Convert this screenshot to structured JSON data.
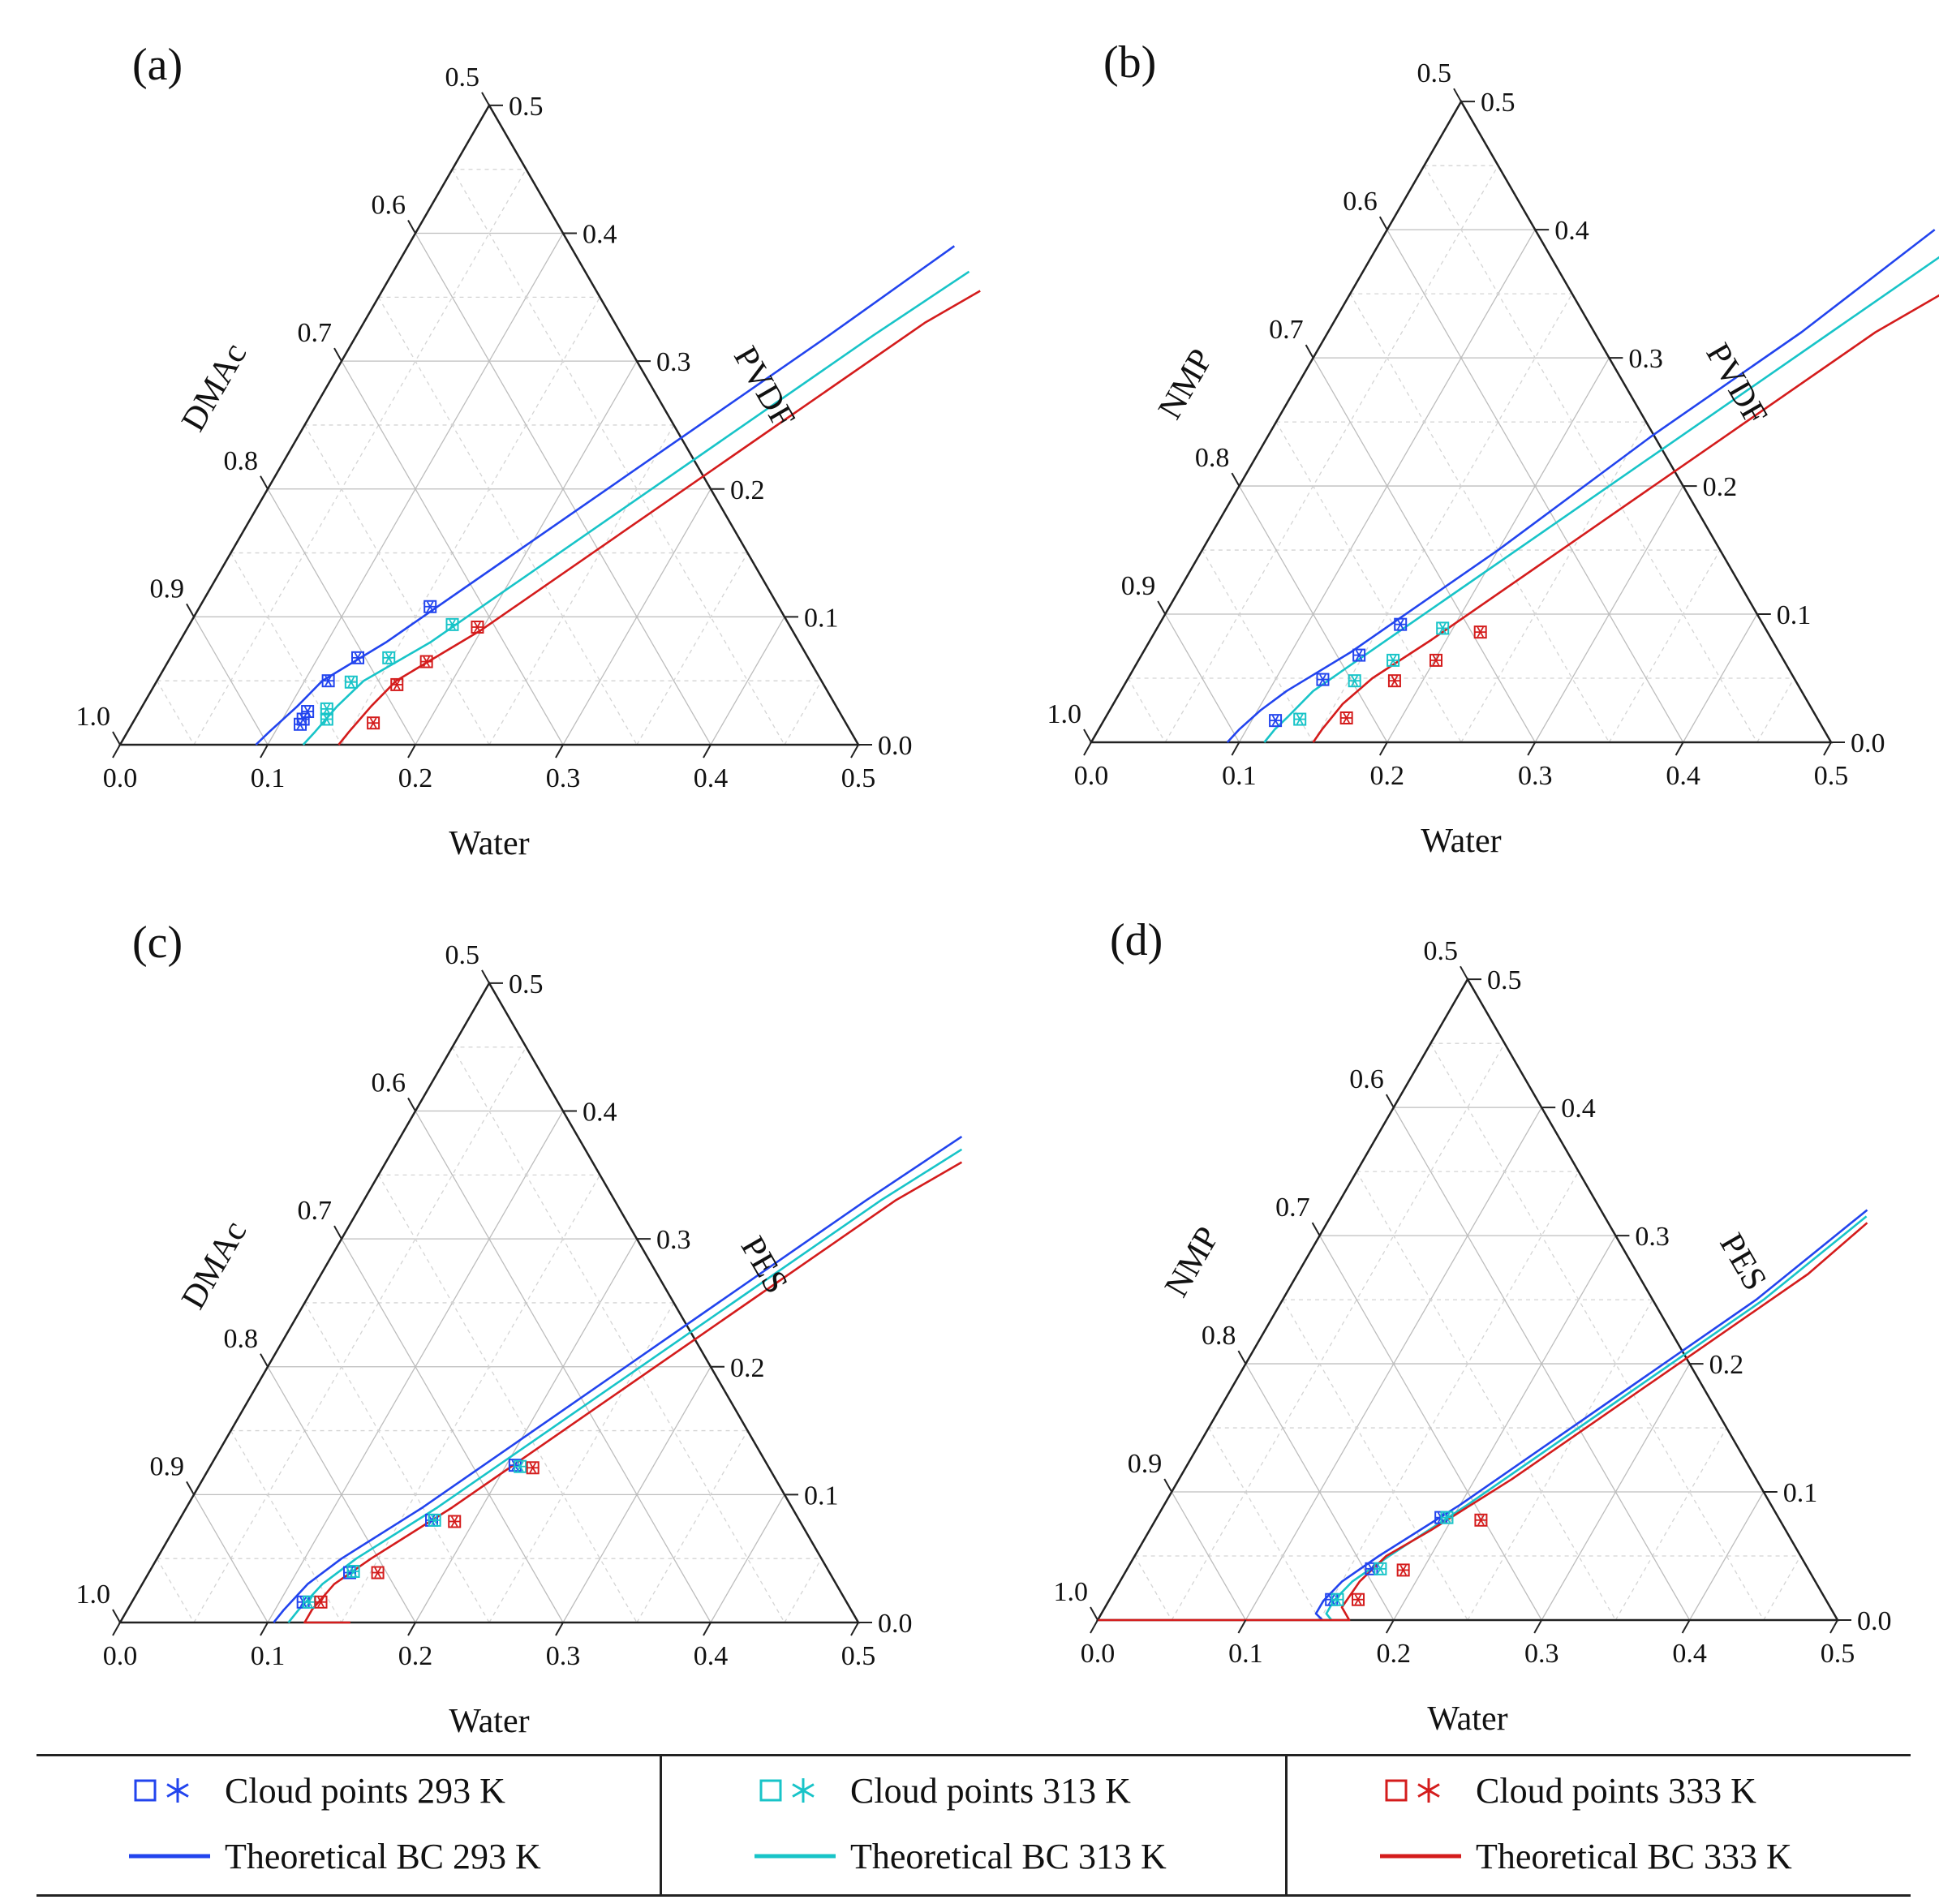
{
  "figure": {
    "panels": [
      {
        "label": "(a)",
        "solvent_label": "DMAc",
        "polymer_label": "PVDF",
        "water_label": "Water",
        "solvent_ticks": [
          "1.0",
          "0.9",
          "0.8",
          "0.7",
          "0.6",
          "0.5"
        ],
        "polymer_ticks": [
          "0.0",
          "0.1",
          "0.2",
          "0.3",
          "0.4",
          "0.5"
        ],
        "water_ticks": [
          "0.0",
          "0.1",
          "0.2",
          "0.3",
          "0.4",
          "0.5"
        ]
      },
      {
        "label": "(b)",
        "solvent_label": "NMP",
        "polymer_label": "PVDF",
        "water_label": "Water",
        "solvent_ticks": [
          "1.0",
          "0.9",
          "0.8",
          "0.7",
          "0.6",
          "0.5"
        ],
        "polymer_ticks": [
          "0.0",
          "0.1",
          "0.2",
          "0.3",
          "0.4",
          "0.5"
        ],
        "water_ticks": [
          "0.0",
          "0.1",
          "0.2",
          "0.3",
          "0.4",
          "0.5"
        ]
      },
      {
        "label": "(c)",
        "solvent_label": "DMAc",
        "polymer_label": "PES",
        "water_label": "Water",
        "solvent_ticks": [
          "1.0",
          "0.9",
          "0.8",
          "0.7",
          "0.6",
          "0.5"
        ],
        "polymer_ticks": [
          "0.0",
          "0.1",
          "0.2",
          "0.3",
          "0.4",
          "0.5"
        ],
        "water_ticks": [
          "0.0",
          "0.1",
          "0.2",
          "0.3",
          "0.4",
          "0.5"
        ]
      },
      {
        "label": "(d)",
        "solvent_label": "NMP",
        "polymer_label": "PES",
        "water_label": "Water",
        "solvent_ticks": [
          "1.0",
          "0.9",
          "0.8",
          "0.7",
          "0.6",
          "0.5"
        ],
        "polymer_ticks": [
          "0.0",
          "0.1",
          "0.2",
          "0.3",
          "0.4",
          "0.5"
        ],
        "water_ticks": [
          "0.0",
          "0.1",
          "0.2",
          "0.3",
          "0.4",
          "0.5"
        ]
      }
    ]
  },
  "legend": {
    "items": [
      {
        "points_label": "Cloud points 293 K",
        "line_label": "Theoretical BC 293 K",
        "color": "#2244ee"
      },
      {
        "points_label": "Cloud points 313 K",
        "line_label": "Theoretical BC 313 K",
        "color": "#18c4c8"
      },
      {
        "points_label": "Cloud points 333 K",
        "line_label": "Theoretical BC 333 K",
        "color": "#d41c1c"
      }
    ]
  },
  "chart_data": [
    {
      "type": "ternary",
      "title": "(a)",
      "axes": {
        "water": "Water",
        "solvent": "DMAc",
        "polymer": "PVDF"
      },
      "ranges": {
        "water": [
          0.0,
          0.5
        ],
        "solvent": [
          0.5,
          1.0
        ],
        "polymer": [
          0.0,
          0.5
        ]
      },
      "grid": true,
      "series": [
        {
          "name": "Theoretical BC 293 K",
          "kind": "line",
          "color": "#2244ee",
          "water": [
            0.092,
            0.096,
            0.105,
            0.112,
            0.14,
            0.2,
            0.26,
            0.32,
            0.37
          ],
          "polymer": [
            0.0,
            0.01,
            0.03,
            0.05,
            0.08,
            0.16,
            0.24,
            0.32,
            0.39
          ]
        },
        {
          "name": "Theoretical BC 313 K",
          "kind": "line",
          "color": "#18c4c8",
          "water": [
            0.124,
            0.127,
            0.132,
            0.14,
            0.17,
            0.23,
            0.29,
            0.35,
            0.39
          ],
          "polymer": [
            0.0,
            0.01,
            0.03,
            0.05,
            0.08,
            0.16,
            0.24,
            0.32,
            0.37
          ]
        },
        {
          "name": "Theoretical BC 333 K",
          "kind": "line",
          "color": "#d41c1c",
          "water": [
            0.148,
            0.15,
            0.155,
            0.162,
            0.2,
            0.26,
            0.32,
            0.38,
            0.405
          ],
          "polymer": [
            0.0,
            0.01,
            0.03,
            0.05,
            0.09,
            0.17,
            0.25,
            0.33,
            0.355
          ]
        },
        {
          "name": "Cloud points 293 K",
          "kind": "points",
          "color": "#2244ee",
          "water": [
            0.156,
            0.127,
            0.116,
            0.114,
            0.114,
            0.114
          ],
          "polymer": [
            0.108,
            0.068,
            0.05,
            0.026,
            0.02,
            0.016
          ]
        },
        {
          "name": "Cloud points 313 K",
          "kind": "points",
          "color": "#18c4c8",
          "water": [
            0.178,
            0.148,
            0.132,
            0.126,
            0.13
          ],
          "polymer": [
            0.094,
            0.068,
            0.049,
            0.028,
            0.02
          ]
        },
        {
          "name": "Cloud points 333 K",
          "kind": "points",
          "color": "#d41c1c",
          "water": [
            0.196,
            0.175,
            0.164,
            0.163
          ],
          "polymer": [
            0.092,
            0.065,
            0.047,
            0.017
          ]
        }
      ]
    },
    {
      "type": "ternary",
      "title": "(b)",
      "axes": {
        "water": "Water",
        "solvent": "NMP",
        "polymer": "PVDF"
      },
      "ranges": {
        "water": [
          0.0,
          0.5
        ],
        "solvent": [
          0.5,
          1.0
        ],
        "polymer": [
          0.0,
          0.5
        ]
      },
      "grid": true,
      "series": [
        {
          "name": "Theoretical BC 293 K",
          "kind": "line",
          "color": "#2244ee",
          "water": [
            0.092,
            0.095,
            0.102,
            0.112,
            0.14,
            0.2,
            0.26,
            0.32,
            0.37
          ],
          "polymer": [
            0.0,
            0.01,
            0.025,
            0.04,
            0.07,
            0.15,
            0.24,
            0.32,
            0.4
          ]
        },
        {
          "name": "Theoretical BC 313 K",
          "kind": "line",
          "color": "#18c4c8",
          "water": [
            0.117,
            0.119,
            0.123,
            0.13,
            0.16,
            0.22,
            0.28,
            0.34,
            0.385
          ],
          "polymer": [
            0.0,
            0.01,
            0.02,
            0.04,
            0.08,
            0.16,
            0.24,
            0.32,
            0.38
          ]
        },
        {
          "name": "Theoretical BC 333 K",
          "kind": "line",
          "color": "#d41c1c",
          "water": [
            0.15,
            0.151,
            0.155,
            0.165,
            0.19,
            0.25,
            0.31,
            0.37,
            0.4
          ],
          "polymer": [
            0.0,
            0.01,
            0.03,
            0.05,
            0.08,
            0.16,
            0.24,
            0.32,
            0.35
          ]
        },
        {
          "name": "Cloud points 293 K",
          "kind": "points",
          "color": "#2244ee",
          "water": [
            0.163,
            0.147,
            0.132,
            0.116
          ],
          "polymer": [
            0.092,
            0.068,
            0.049,
            0.017
          ]
        },
        {
          "name": "Cloud points 313 K",
          "kind": "points",
          "color": "#18c4c8",
          "water": [
            0.193,
            0.172,
            0.154,
            0.132
          ],
          "polymer": [
            0.089,
            0.064,
            0.048,
            0.018
          ]
        },
        {
          "name": "Cloud points 333 K",
          "kind": "points",
          "color": "#d41c1c",
          "water": [
            0.22,
            0.201,
            0.181,
            0.163
          ],
          "polymer": [
            0.086,
            0.064,
            0.048,
            0.019
          ]
        }
      ]
    },
    {
      "type": "ternary",
      "title": "(c)",
      "axes": {
        "water": "Water",
        "solvent": "DMAc",
        "polymer": "PES"
      },
      "ranges": {
        "water": [
          0.0,
          0.5
        ],
        "solvent": [
          0.5,
          1.0
        ],
        "polymer": [
          0.0,
          0.5
        ]
      },
      "grid": true,
      "series": [
        {
          "name": "Theoretical BC 293 K",
          "kind": "line",
          "color": "#2244ee",
          "water": [
            0.104,
            0.106,
            0.112,
            0.125,
            0.16,
            0.22,
            0.28,
            0.34,
            0.38
          ],
          "polymer": [
            0.0,
            0.01,
            0.03,
            0.05,
            0.09,
            0.17,
            0.25,
            0.33,
            0.38
          ]
        },
        {
          "name": "Theoretical BC 313 K",
          "kind": "line",
          "color": "#18c4c8",
          "water": [
            0.114,
            0.116,
            0.122,
            0.135,
            0.17,
            0.23,
            0.29,
            0.35,
            0.385
          ],
          "polymer": [
            0.0,
            0.01,
            0.03,
            0.05,
            0.09,
            0.17,
            0.25,
            0.33,
            0.37
          ]
        },
        {
          "name": "Theoretical BC 333 K",
          "kind": "line",
          "color": "#d41c1c",
          "water": [
            0.156,
            0.125,
            0.125,
            0.13,
            0.145,
            0.18,
            0.24,
            0.3,
            0.36,
            0.39
          ],
          "polymer": [
            0.0,
            0.0,
            0.01,
            0.03,
            0.05,
            0.09,
            0.17,
            0.25,
            0.33,
            0.36
          ]
        },
        {
          "name": "Cloud points 293 K",
          "kind": "points",
          "color": "#2244ee",
          "water": [
            0.206,
            0.171,
            0.136,
            0.116
          ],
          "polymer": [
            0.123,
            0.08,
            0.039,
            0.016
          ]
        },
        {
          "name": "Cloud points 313 K",
          "kind": "points",
          "color": "#18c4c8",
          "water": [
            0.21,
            0.173,
            0.138,
            0.12
          ],
          "polymer": [
            0.122,
            0.08,
            0.04,
            0.016
          ]
        },
        {
          "name": "Cloud points 333 K",
          "kind": "points",
          "color": "#d41c1c",
          "water": [
            0.219,
            0.187,
            0.155,
            0.128
          ],
          "polymer": [
            0.121,
            0.079,
            0.039,
            0.016
          ]
        }
      ]
    },
    {
      "type": "ternary",
      "title": "(d)",
      "axes": {
        "water": "Water",
        "solvent": "NMP",
        "polymer": "PES"
      },
      "ranges": {
        "water": [
          0.0,
          0.5
        ],
        "solvent": [
          0.5,
          1.0
        ],
        "polymer": [
          0.0,
          0.5
        ]
      },
      "grid": true,
      "series": [
        {
          "name": "Theoretical BC 293 K",
          "kind": "line",
          "color": "#2244ee",
          "water": [
            0.152,
            0.145,
            0.145,
            0.15,
            0.165,
            0.2,
            0.26,
            0.32,
            0.36
          ],
          "polymer": [
            0.0,
            0.005,
            0.015,
            0.03,
            0.05,
            0.09,
            0.17,
            0.25,
            0.32
          ]
        },
        {
          "name": "Theoretical BC 313 K",
          "kind": "line",
          "color": "#18c4c8",
          "water": [
            0.158,
            0.152,
            0.152,
            0.157,
            0.172,
            0.205,
            0.265,
            0.325,
            0.362
          ],
          "polymer": [
            0.0,
            0.005,
            0.015,
            0.03,
            0.05,
            0.09,
            0.17,
            0.25,
            0.315
          ]
        },
        {
          "name": "Theoretical BC 333 K",
          "kind": "line",
          "color": "#d41c1c",
          "water": [
            0.0,
            0.17,
            0.16,
            0.162,
            0.17,
            0.19,
            0.225,
            0.285,
            0.345,
            0.365
          ],
          "polymer": [
            0.0,
            0.0,
            0.01,
            0.03,
            0.05,
            0.07,
            0.11,
            0.19,
            0.27,
            0.31
          ]
        },
        {
          "name": "Cloud points 293 K",
          "kind": "points",
          "color": "#2244ee",
          "water": [
            0.192,
            0.165,
            0.15
          ],
          "polymer": [
            0.08,
            0.04,
            0.016
          ]
        },
        {
          "name": "Cloud points 313 K",
          "kind": "points",
          "color": "#18c4c8",
          "water": [
            0.196,
            0.171,
            0.154
          ],
          "polymer": [
            0.08,
            0.04,
            0.016
          ]
        },
        {
          "name": "Cloud points 333 K",
          "kind": "points",
          "color": "#d41c1c",
          "water": [
            0.22,
            0.187,
            0.168
          ],
          "polymer": [
            0.078,
            0.039,
            0.016
          ]
        }
      ]
    }
  ]
}
